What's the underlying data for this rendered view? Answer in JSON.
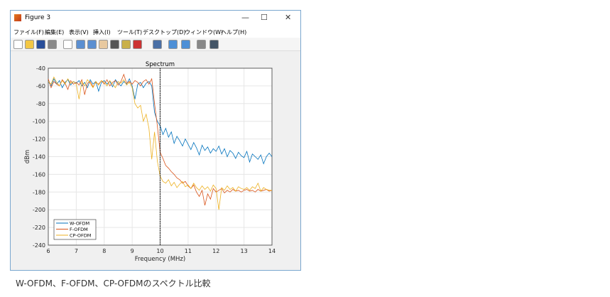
{
  "window": {
    "title": "Figure 3",
    "minimize": "—",
    "maximize": "☐",
    "close": "✕"
  },
  "menu": [
    "ファイル(F)",
    "編集(E)",
    "表示(V)",
    "挿入(I)",
    "ツール(T)",
    "デスクトップ(D)",
    "ウィンドウ(W)",
    "ヘルプ(H)"
  ],
  "toolbar_icons": [
    "new-file-icon",
    "open-folder-icon",
    "save-icon",
    "print-icon",
    "pointer-icon",
    "zoom-in-icon",
    "zoom-out-icon",
    "pan-hand-icon",
    "rotate-icon",
    "data-cursor-icon",
    "brush-icon",
    "link-plot-icon",
    "colorbar-icon",
    "legend-icon",
    "hide-plot-tools-icon",
    "show-plot-tools-icon"
  ],
  "caption": "W-OFDM、F-OFDM、CP-OFDMのスペクトル比較",
  "chart_data": {
    "type": "line",
    "title": "Spectrum",
    "xlabel": "Frequency (MHz)",
    "ylabel": "dBm",
    "xlim": [
      6,
      14
    ],
    "ylim": [
      -240,
      -40
    ],
    "grid": true,
    "legend": "bottom-left",
    "xticks": [
      "6",
      "7",
      "8",
      "9",
      "10",
      "11",
      "12",
      "13",
      "14"
    ],
    "yticks": [
      "-40",
      "-60",
      "-80",
      "-100",
      "-120",
      "-140",
      "-160",
      "-180",
      "-200",
      "-220",
      "-240"
    ],
    "vline": 10,
    "x_start": 6,
    "x_step": 0.1,
    "series": [
      {
        "name": "W-OFDM",
        "color": "#0072bd",
        "values": [
          -55,
          -60,
          -52,
          -58,
          -54,
          -62,
          -56,
          -53,
          -59,
          -55,
          -57,
          -54,
          -60,
          -56,
          -62,
          -53,
          -58,
          -55,
          -66,
          -56,
          -54,
          -58,
          -55,
          -61,
          -53,
          -57,
          -60,
          -55,
          -58,
          -52,
          -60,
          -75,
          -58,
          -56,
          -62,
          -57,
          -55,
          -60,
          -90,
          -100,
          -105,
          -115,
          -108,
          -118,
          -112,
          -125,
          -117,
          -122,
          -128,
          -120,
          -126,
          -132,
          -124,
          -130,
          -138,
          -127,
          -133,
          -129,
          -136,
          -131,
          -134,
          -128,
          -137,
          -131,
          -140,
          -133,
          -136,
          -142,
          -135,
          -139,
          -141,
          -134,
          -146,
          -137,
          -140,
          -143,
          -138,
          -148,
          -140,
          -136,
          -140
        ]
      },
      {
        "name": "F-OFDM",
        "color": "#d95319",
        "values": [
          -52,
          -62,
          -55,
          -58,
          -60,
          -53,
          -57,
          -64,
          -54,
          -58,
          -56,
          -59,
          -53,
          -70,
          -57,
          -55,
          -61,
          -56,
          -58,
          -54,
          -58,
          -53,
          -60,
          -56,
          -54,
          -59,
          -55,
          -47,
          -57,
          -55,
          -58,
          -54,
          -56,
          -60,
          -55,
          -53,
          -58,
          -52,
          -80,
          -105,
          -135,
          -142,
          -150,
          -153,
          -157,
          -160,
          -164,
          -166,
          -170,
          -168,
          -173,
          -176,
          -172,
          -180,
          -185,
          -178,
          -195,
          -182,
          -188,
          -176,
          -180,
          -178,
          -176,
          -181,
          -178,
          -180,
          -177,
          -179,
          -178,
          -180,
          -178,
          -177,
          -179,
          -178,
          -180,
          -177,
          -179,
          -178,
          -177,
          -179,
          -178
        ]
      },
      {
        "name": "CP-OFDM",
        "color": "#edb120",
        "values": [
          -55,
          -58,
          -50,
          -56,
          -60,
          -54,
          -58,
          -52,
          -57,
          -55,
          -58,
          -75,
          -55,
          -60,
          -53,
          -57,
          -62,
          -55,
          -59,
          -54,
          -56,
          -60,
          -54,
          -58,
          -62,
          -55,
          -57,
          -53,
          -59,
          -56,
          -62,
          -80,
          -85,
          -82,
          -100,
          -92,
          -108,
          -143,
          -112,
          -145,
          -162,
          -168,
          -170,
          -166,
          -173,
          -169,
          -175,
          -171,
          -168,
          -174,
          -172,
          -176,
          -170,
          -175,
          -178,
          -173,
          -177,
          -174,
          -179,
          -172,
          -176,
          -200,
          -175,
          -178,
          -173,
          -177,
          -175,
          -179,
          -174,
          -176,
          -177,
          -175,
          -178,
          -174,
          -176,
          -170,
          -179,
          -175,
          -177,
          -178,
          -178
        ]
      }
    ]
  }
}
